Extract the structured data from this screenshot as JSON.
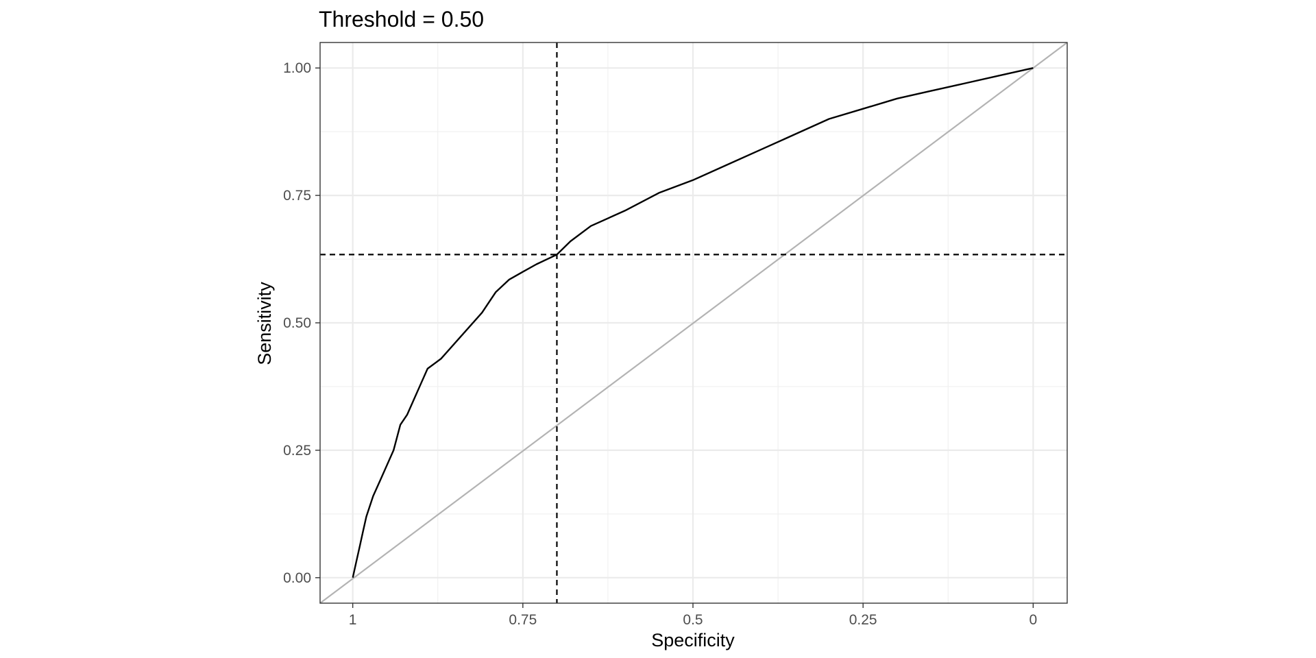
{
  "chart_data": {
    "type": "line",
    "title": "Threshold = 0.50",
    "xlabel": "Specificity",
    "ylabel": "Sensitivity",
    "x_reversed": true,
    "xlim": [
      1.048,
      -0.05
    ],
    "ylim": [
      -0.05,
      1.05
    ],
    "x_ticks": [
      1,
      0.75,
      0.5,
      0.25,
      0
    ],
    "x_tick_labels": [
      "1",
      "0.75",
      "0.5",
      "0.25",
      "0"
    ],
    "y_ticks": [
      0,
      0.25,
      0.5,
      0.75,
      1
    ],
    "y_tick_labels": [
      "0.00",
      "0.25",
      "0.50",
      "0.75",
      "1.00"
    ],
    "grid": true,
    "threshold_lines": {
      "specificity": 0.7,
      "sensitivity": 0.634
    },
    "series": [
      {
        "color": "#000000",
        "points": [
          [
            1.0,
            0.0
          ],
          [
            0.995,
            0.03
          ],
          [
            0.99,
            0.06
          ],
          [
            0.985,
            0.09
          ],
          [
            0.98,
            0.12
          ],
          [
            0.97,
            0.16
          ],
          [
            0.96,
            0.19
          ],
          [
            0.95,
            0.22
          ],
          [
            0.94,
            0.25
          ],
          [
            0.93,
            0.3
          ],
          [
            0.92,
            0.32
          ],
          [
            0.91,
            0.35
          ],
          [
            0.9,
            0.38
          ],
          [
            0.89,
            0.41
          ],
          [
            0.87,
            0.43
          ],
          [
            0.85,
            0.46
          ],
          [
            0.83,
            0.49
          ],
          [
            0.81,
            0.52
          ],
          [
            0.79,
            0.56
          ],
          [
            0.77,
            0.585
          ],
          [
            0.75,
            0.6
          ],
          [
            0.73,
            0.615
          ],
          [
            0.7,
            0.634
          ],
          [
            0.68,
            0.66
          ],
          [
            0.65,
            0.69
          ],
          [
            0.6,
            0.72
          ],
          [
            0.55,
            0.755
          ],
          [
            0.5,
            0.78
          ],
          [
            0.45,
            0.81
          ],
          [
            0.4,
            0.84
          ],
          [
            0.35,
            0.87
          ],
          [
            0.3,
            0.9
          ],
          [
            0.25,
            0.92
          ],
          [
            0.2,
            0.94
          ],
          [
            0.15,
            0.955
          ],
          [
            0.1,
            0.97
          ],
          [
            0.05,
            0.985
          ],
          [
            0.0,
            1.0
          ]
        ]
      },
      {
        "color": "#b3b3b3",
        "points": [
          [
            1.048,
            -0.05
          ],
          [
            -0.05,
            1.05
          ]
        ]
      }
    ]
  }
}
